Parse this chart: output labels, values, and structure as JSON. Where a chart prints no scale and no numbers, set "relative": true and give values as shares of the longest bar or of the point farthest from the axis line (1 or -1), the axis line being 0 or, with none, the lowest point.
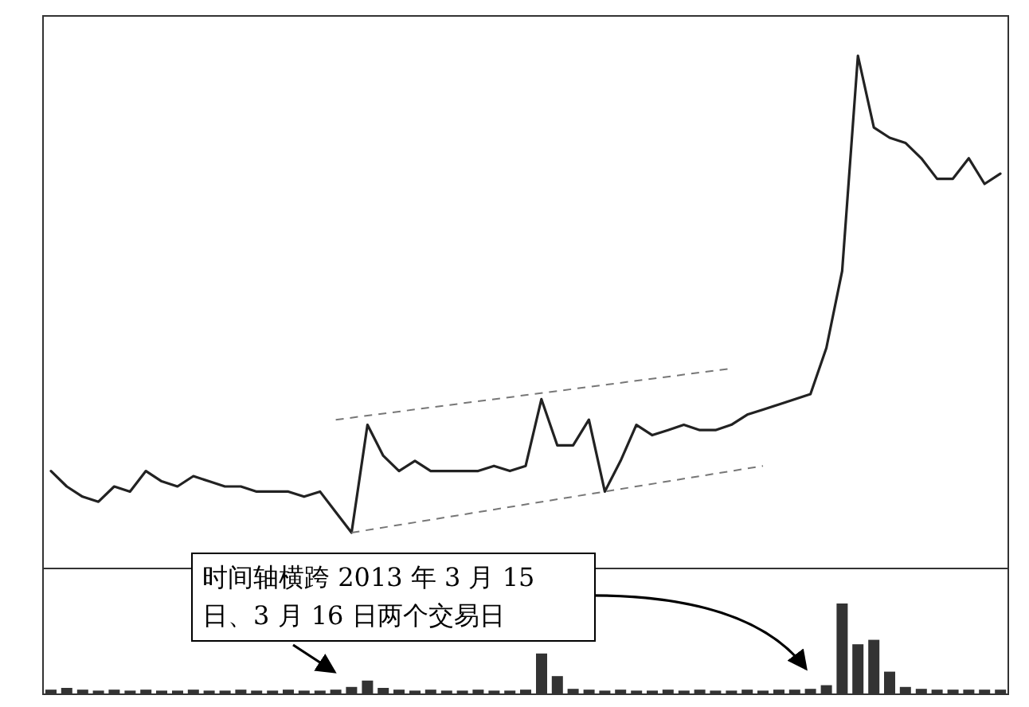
{
  "chart_data": [
    {
      "type": "line",
      "relative": true,
      "color": "#222222",
      "annotations": [
        "时间轴横跨 2013 年 3 月 15 日、3 月 16 日两个交易日"
      ],
      "categories": [
        null,
        null,
        null,
        null,
        null,
        null,
        null,
        null,
        null,
        null,
        null,
        null,
        null,
        null,
        null,
        null,
        null,
        null,
        null,
        null,
        null,
        null,
        null,
        null,
        null,
        null,
        null,
        null,
        null,
        null,
        null,
        null,
        null,
        null,
        null,
        null,
        null,
        null,
        null,
        null,
        null,
        null,
        null,
        null,
        null,
        null,
        null,
        null,
        null,
        null,
        null,
        null,
        null,
        null,
        null,
        null,
        null,
        null,
        null,
        null,
        null
      ],
      "values": [
        0.19,
        0.16,
        0.14,
        0.13,
        0.16,
        0.15,
        0.19,
        0.17,
        0.16,
        0.18,
        0.17,
        0.16,
        0.16,
        0.15,
        0.15,
        0.15,
        0.14,
        0.15,
        0.11,
        0.07,
        0.28,
        0.22,
        0.19,
        0.21,
        0.19,
        0.19,
        0.19,
        0.19,
        0.2,
        0.19,
        0.2,
        0.33,
        0.24,
        0.24,
        0.29,
        0.15,
        0.21,
        0.28,
        0.26,
        0.27,
        0.28,
        0.27,
        0.27,
        0.28,
        0.3,
        0.31,
        0.32,
        0.33,
        0.34,
        0.43,
        0.58,
        1,
        0.86,
        0.84,
        0.83,
        0.8,
        0.76,
        0.76,
        0.8,
        0.75,
        0.77
      ],
      "series": [
        {
          "color": "#777777",
          "line_style": "dashed",
          "values": [
            null,
            null,
            null,
            null,
            null,
            null,
            null,
            null,
            null,
            null,
            null,
            null,
            null,
            null,
            null,
            null,
            null,
            null,
            0.29,
            null,
            null,
            null,
            null,
            null,
            null,
            null,
            null,
            null,
            null,
            null,
            null,
            null,
            null,
            null,
            null,
            null,
            null,
            null,
            null,
            null,
            null,
            null,
            null,
            0.39,
            null,
            null,
            null,
            null,
            null,
            null,
            null,
            null,
            null,
            null,
            null,
            null,
            null,
            null,
            null,
            null,
            null
          ]
        },
        {
          "color": "#777777",
          "line_style": "dashed",
          "values": [
            null,
            null,
            null,
            null,
            null,
            null,
            null,
            null,
            null,
            null,
            null,
            null,
            null,
            null,
            null,
            null,
            null,
            null,
            null,
            0.07,
            null,
            null,
            null,
            null,
            null,
            null,
            null,
            null,
            null,
            null,
            null,
            null,
            null,
            null,
            null,
            null,
            null,
            null,
            null,
            null,
            null,
            null,
            null,
            null,
            null,
            0.2,
            null,
            null,
            null,
            null,
            null,
            null,
            null,
            null,
            null,
            null,
            null,
            null,
            null,
            null,
            null
          ]
        }
      ]
    },
    {
      "type": "bar",
      "relative": true,
      "color": "#333333",
      "categories": [
        null,
        null,
        null,
        null,
        null,
        null,
        null,
        null,
        null,
        null,
        null,
        null,
        null,
        null,
        null,
        null,
        null,
        null,
        null,
        null,
        null,
        null,
        null,
        null,
        null,
        null,
        null,
        null,
        null,
        null,
        null,
        null,
        null,
        null,
        null,
        null,
        null,
        null,
        null,
        null,
        null,
        null,
        null,
        null,
        null,
        null,
        null,
        null,
        null,
        null,
        null,
        null,
        null,
        null,
        null,
        null,
        null,
        null,
        null,
        null,
        null
      ],
      "values": [
        0.05,
        0.07,
        0.05,
        0.04,
        0.05,
        0.04,
        0.05,
        0.04,
        0.04,
        0.05,
        0.04,
        0.04,
        0.05,
        0.04,
        0.04,
        0.05,
        0.04,
        0.04,
        0.05,
        0.08,
        0.15,
        0.07,
        0.05,
        0.04,
        0.05,
        0.04,
        0.04,
        0.05,
        0.04,
        0.04,
        0.05,
        0.45,
        0.2,
        0.06,
        0.05,
        0.04,
        0.05,
        0.04,
        0.04,
        0.05,
        0.04,
        0.05,
        0.04,
        0.04,
        0.05,
        0.04,
        0.05,
        0.05,
        0.06,
        0.1,
        1,
        0.55,
        0.6,
        0.25,
        0.08,
        0.06,
        0.05,
        0.05,
        0.05,
        0.05,
        0.05
      ]
    }
  ]
}
